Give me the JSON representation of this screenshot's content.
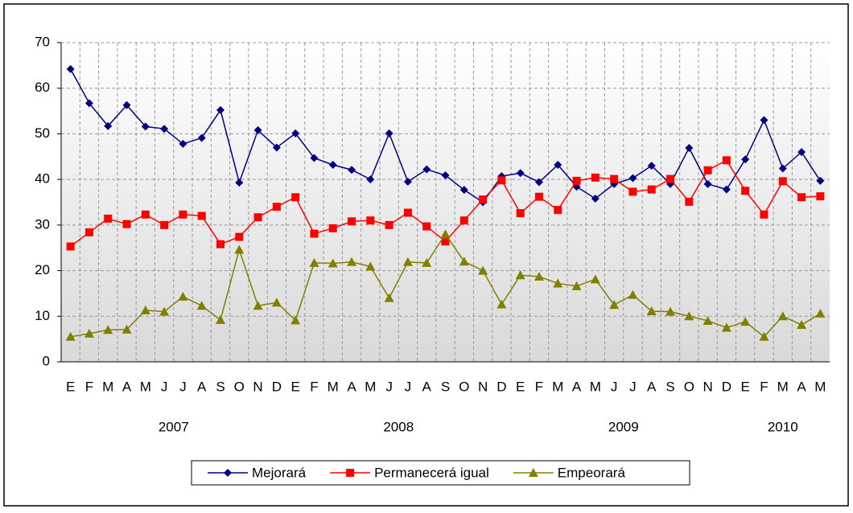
{
  "chart_data": {
    "type": "line",
    "category_groups": [
      {
        "label": "2007",
        "categories": [
          "E",
          "F",
          "M",
          "A",
          "M",
          "J",
          "J",
          "A",
          "S",
          "O",
          "N",
          "D"
        ]
      },
      {
        "label": "2008",
        "categories": [
          "E",
          "F",
          "M",
          "A",
          "M",
          "J",
          "J",
          "A",
          "S",
          "O",
          "N",
          "D"
        ]
      },
      {
        "label": "2009",
        "categories": [
          "E",
          "F",
          "M",
          "A",
          "M",
          "J",
          "J",
          "A",
          "S",
          "O",
          "N",
          "D"
        ]
      },
      {
        "label": "2010",
        "categories": [
          "E",
          "F",
          "M",
          "A",
          "M"
        ]
      }
    ],
    "series": [
      {
        "name": "Mejorará",
        "color": "#000080",
        "marker": "diamond",
        "values": [
          64.2,
          56.7,
          51.7,
          56.3,
          51.6,
          51.1,
          47.8,
          49.1,
          55.2,
          39.3,
          50.8,
          47.0,
          50.1,
          44.7,
          43.2,
          42.1,
          40.0,
          50.1,
          39.5,
          42.2,
          40.9,
          37.7,
          35.0,
          40.7,
          41.4,
          39.4,
          43.2,
          38.4,
          35.8,
          39.0,
          40.3,
          43.0,
          39.0,
          46.9,
          39.0,
          37.8,
          44.4,
          53.0,
          42.4,
          46.0,
          39.7
        ]
      },
      {
        "name": "Permanecerá igual",
        "color": "#ff0000",
        "marker": "square",
        "values": [
          25.3,
          28.4,
          31.4,
          30.2,
          32.3,
          30.0,
          32.3,
          32.0,
          25.8,
          27.4,
          31.7,
          34.0,
          36.1,
          28.1,
          29.3,
          30.8,
          31.0,
          30.0,
          32.7,
          29.7,
          26.4,
          31.0,
          35.6,
          39.8,
          32.6,
          36.2,
          33.3,
          39.7,
          40.4,
          40.1,
          37.3,
          37.8,
          40.1,
          35.1,
          42.0,
          44.2,
          37.5,
          32.3,
          39.6,
          36.1,
          36.3
        ]
      },
      {
        "name": "Empeorará",
        "color": "#808000",
        "marker": "triangle",
        "values": [
          5.5,
          6.2,
          7.0,
          7.1,
          11.3,
          11.0,
          14.3,
          12.3,
          9.2,
          24.6,
          12.3,
          13.0,
          9.1,
          21.7,
          21.6,
          21.9,
          20.9,
          14.0,
          21.9,
          21.7,
          28.0,
          22.0,
          20.0,
          12.6,
          19.0,
          18.7,
          17.2,
          16.6,
          18.1,
          12.5,
          14.7,
          11.1,
          11.0,
          10.0,
          9.0,
          7.5,
          8.8,
          5.5,
          10.0,
          8.1,
          10.6
        ]
      }
    ],
    "ylim": [
      0,
      70
    ],
    "yticks": [
      0,
      10,
      20,
      30,
      40,
      50,
      60,
      70
    ],
    "grid": true,
    "legend": "bottom"
  }
}
